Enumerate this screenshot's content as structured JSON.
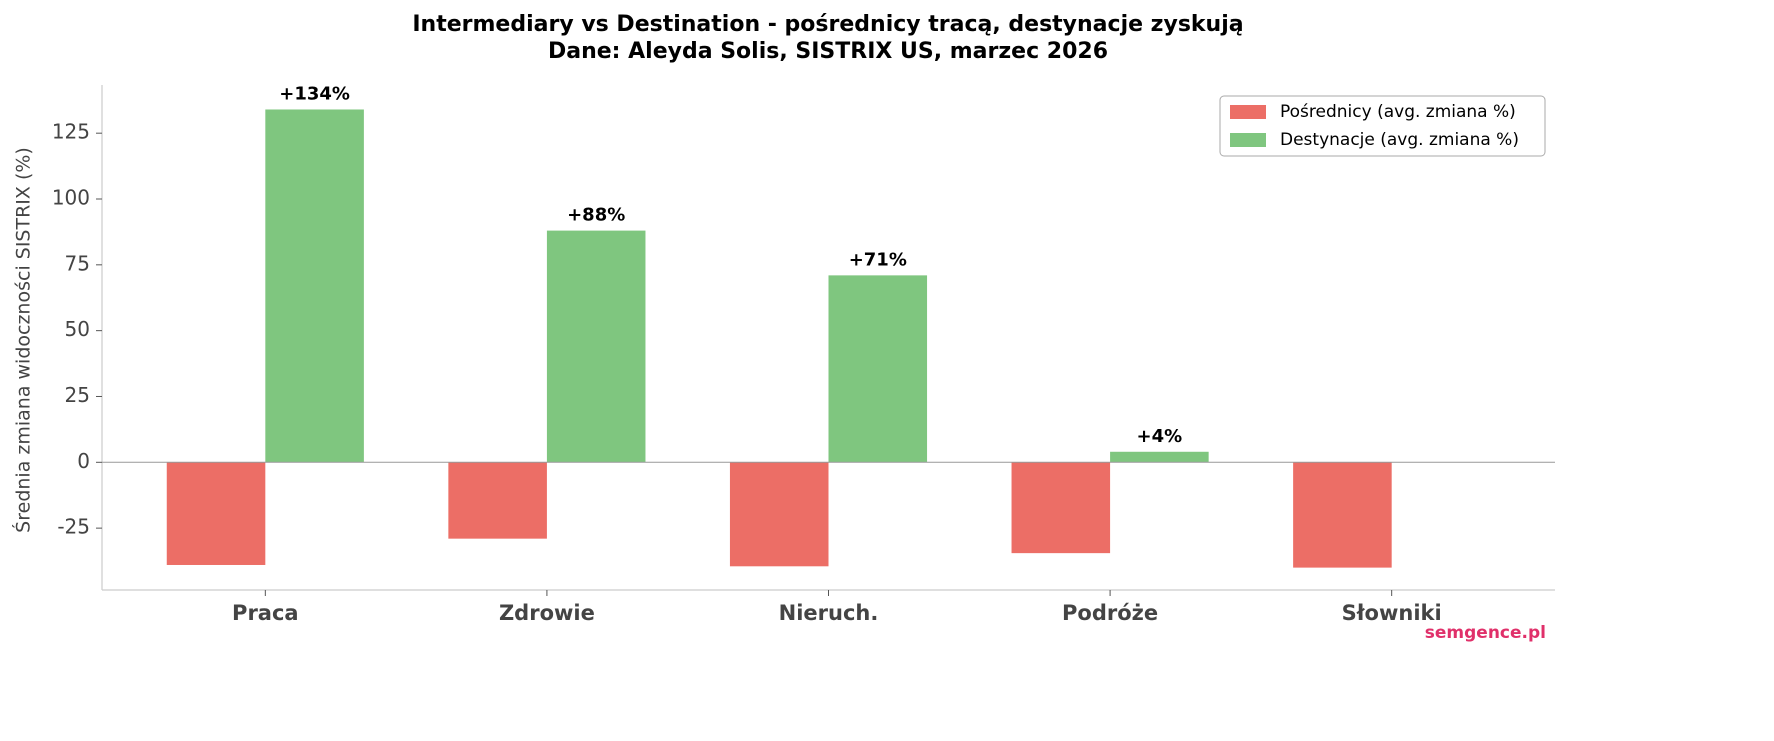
{
  "chart_data": {
    "type": "bar",
    "title": "Intermediary vs Destination - pośrednicy tracą, destynacje zyskują",
    "subtitle": "Dane: Aleyda Solis, SISTRIX US, marzec 2026",
    "y_label": "Średnia zmiana widoczności SISTRIX (%)",
    "categories": [
      "Praca",
      "Zdrowie",
      "Nieruch.",
      "Podróże",
      "Słowniki"
    ],
    "series": [
      {
        "name": "Pośrednicy (avg. zmiana %)",
        "color": "#ec6e66",
        "values": [
          -39,
          -29,
          -39.5,
          -34.5,
          -40
        ]
      },
      {
        "name": "Destynacje (avg. zmiana %)",
        "color": "#7fc67f",
        "values": [
          134,
          88,
          71,
          4,
          null
        ],
        "value_labels": [
          "+134%",
          "+88%",
          "+71%",
          "+4%",
          null
        ]
      }
    ],
    "ylim": [
      -48.5,
      143.3
    ],
    "yticks": [
      -25,
      0,
      25,
      50,
      75,
      100,
      125
    ],
    "legend": "upper right",
    "watermark": "semgence.pl"
  }
}
